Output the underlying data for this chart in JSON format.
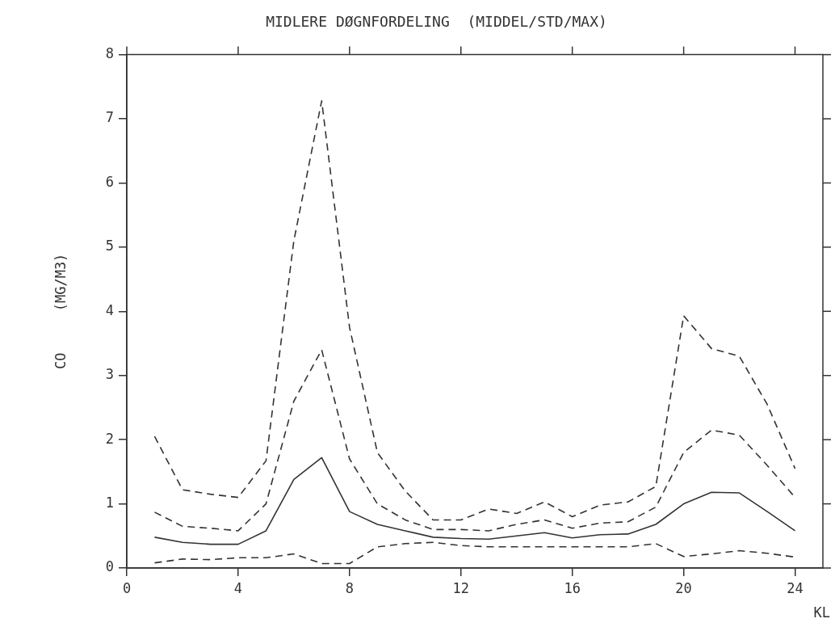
{
  "chart_data": {
    "type": "line",
    "title": "MIDLERE DØGNFORDELING  (MIDDEL/STD/MAX)",
    "xlabel": "KL",
    "ylabel": "CO     (MG/M3)",
    "x": [
      1,
      2,
      3,
      4,
      5,
      6,
      7,
      8,
      9,
      10,
      11,
      12,
      13,
      14,
      15,
      16,
      17,
      18,
      19,
      20,
      21,
      22,
      23,
      24
    ],
    "series": [
      {
        "color": "#333333",
        "line_style": "dashed",
        "values": [
          2.05,
          1.22,
          1.15,
          1.1,
          1.67,
          5.1,
          7.28,
          3.75,
          1.8,
          1.2,
          0.75,
          0.75,
          0.92,
          0.85,
          1.03,
          0.8,
          0.98,
          1.03,
          1.27,
          3.93,
          3.42,
          3.3,
          2.55,
          1.55
        ]
      },
      {
        "color": "#333333",
        "line_style": "dashed",
        "values": [
          0.87,
          0.65,
          0.62,
          0.58,
          1.0,
          2.6,
          3.4,
          1.7,
          1.0,
          0.75,
          0.6,
          0.6,
          0.58,
          0.68,
          0.75,
          0.62,
          0.7,
          0.72,
          0.95,
          1.8,
          2.15,
          2.07,
          1.6,
          1.1
        ]
      },
      {
        "color": "#333333",
        "line_style": "solid",
        "values": [
          0.48,
          0.4,
          0.37,
          0.37,
          0.58,
          1.38,
          1.72,
          0.88,
          0.68,
          0.58,
          0.48,
          0.46,
          0.45,
          0.5,
          0.55,
          0.47,
          0.52,
          0.53,
          0.68,
          1.0,
          1.18,
          1.17,
          0.88,
          0.58
        ]
      },
      {
        "color": "#333333",
        "line_style": "dashed",
        "values": [
          0.08,
          0.14,
          0.13,
          0.16,
          0.16,
          0.22,
          0.07,
          0.07,
          0.33,
          0.38,
          0.4,
          0.35,
          0.33,
          0.33,
          0.33,
          0.33,
          0.33,
          0.33,
          0.38,
          0.18,
          0.22,
          0.27,
          0.23,
          0.17
        ]
      }
    ],
    "xlim": [
      0,
      25
    ],
    "xticks": [
      0,
      4,
      8,
      12,
      16,
      20,
      24
    ],
    "ylim": [
      0,
      8
    ],
    "yticks": [
      0,
      1,
      2,
      3,
      4,
      5,
      6,
      7,
      8
    ],
    "grid": false,
    "legend": false,
    "marker": "none"
  }
}
